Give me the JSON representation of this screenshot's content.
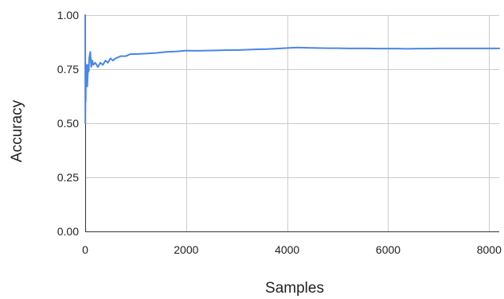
{
  "chart_data": {
    "type": "line",
    "title": "",
    "xlabel": "Samples",
    "ylabel": "Accuracy",
    "xlim": [
      0,
      8200
    ],
    "ylim": [
      0,
      1
    ],
    "x_ticks": [
      0,
      2000,
      4000,
      6000,
      8000
    ],
    "x_tick_labels": [
      "0",
      "2000",
      "4000",
      "6000",
      "8000"
    ],
    "y_ticks": [
      0,
      0.25,
      0.5,
      0.75,
      1
    ],
    "y_tick_labels": [
      "0.00",
      "0.25",
      "0.50",
      "0.75",
      "1.00"
    ],
    "grid": true,
    "legend": "none",
    "series": [
      {
        "color": "#4a86e8",
        "x": [
          1,
          3,
          6,
          10,
          15,
          20,
          30,
          40,
          50,
          60,
          70,
          80,
          100,
          120,
          140,
          160,
          200,
          250,
          300,
          350,
          400,
          450,
          500,
          550,
          600,
          700,
          800,
          900,
          1000,
          1200,
          1400,
          1600,
          1800,
          2000,
          2200,
          2400,
          2600,
          2800,
          3000,
          3200,
          3400,
          3600,
          3800,
          4000,
          4200,
          4400,
          4600,
          4800,
          5000,
          5200,
          5400,
          5600,
          5800,
          6000,
          6200,
          6400,
          6600,
          6800,
          7000,
          7200,
          7400,
          7600,
          7800,
          8000,
          8200
        ],
        "values": [
          1.0,
          0.5,
          0.67,
          0.6,
          0.73,
          0.7,
          0.77,
          0.67,
          0.72,
          0.77,
          0.74,
          0.8,
          0.83,
          0.76,
          0.79,
          0.77,
          0.78,
          0.76,
          0.78,
          0.77,
          0.79,
          0.78,
          0.8,
          0.79,
          0.8,
          0.81,
          0.81,
          0.82,
          0.82,
          0.822,
          0.825,
          0.83,
          0.832,
          0.836,
          0.835,
          0.836,
          0.837,
          0.838,
          0.838,
          0.84,
          0.842,
          0.843,
          0.845,
          0.848,
          0.85,
          0.849,
          0.848,
          0.847,
          0.847,
          0.846,
          0.846,
          0.846,
          0.845,
          0.845,
          0.845,
          0.844,
          0.845,
          0.845,
          0.846,
          0.846,
          0.846,
          0.846,
          0.846,
          0.846,
          0.846
        ]
      }
    ]
  }
}
